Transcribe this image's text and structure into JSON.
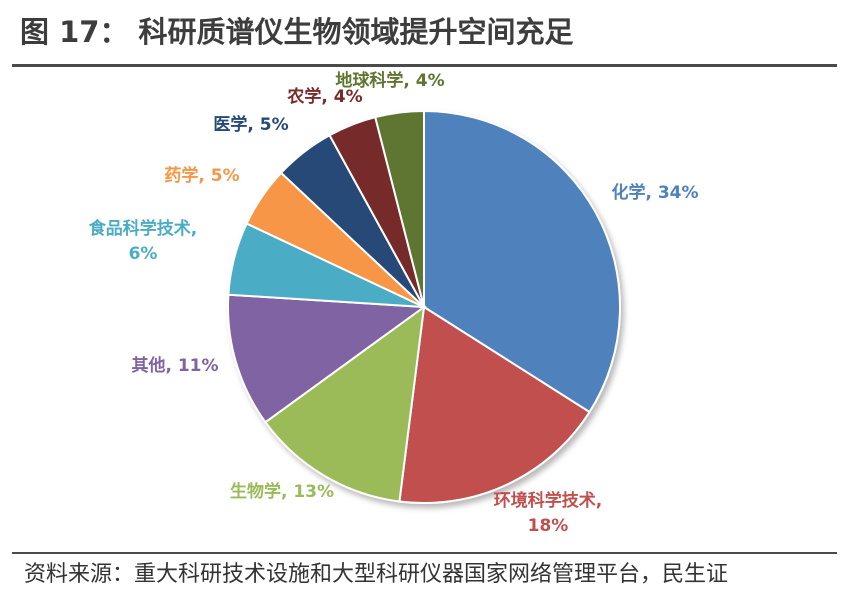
{
  "figure": {
    "title": "图 17： 科研质谱仪生物领域提升空间充足",
    "source": "资料来源：重大科研技术设施和大型科研仪器国家网络管理平台，民生证"
  },
  "chart_data": {
    "type": "pie",
    "title": "",
    "start": "12 o'clock",
    "direction": "clockwise",
    "slices": [
      {
        "label": "化学",
        "value": 34,
        "color": "#4f81bd",
        "text_lines": [
          "化学, 34%"
        ]
      },
      {
        "label": "环境科学技术",
        "value": 18,
        "color": "#c0504d",
        "text_lines": [
          "环境科学技术,",
          "18%"
        ]
      },
      {
        "label": "生物学",
        "value": 13,
        "color": "#9bbb59",
        "text_lines": [
          "生物学, 13%"
        ]
      },
      {
        "label": "其他",
        "value": 11,
        "color": "#8064a2",
        "text_lines": [
          "其他, 11%"
        ]
      },
      {
        "label": "食品科学技术",
        "value": 6,
        "color": "#4bacc6",
        "text_lines": [
          "食品科学技术,",
          "6%"
        ]
      },
      {
        "label": "药学",
        "value": 5,
        "color": "#f79646",
        "text_lines": [
          "药学, 5%"
        ]
      },
      {
        "label": "医学",
        "value": 5,
        "color": "#254a77",
        "text_lines": [
          "医学, 5%"
        ]
      },
      {
        "label": "农学",
        "value": 4,
        "color": "#772c2a",
        "text_lines": [
          "农学, 4%"
        ]
      },
      {
        "label": "地球科学",
        "value": 4,
        "color": "#5f7530",
        "text_lines": [
          "地球科学, 4%"
        ]
      }
    ]
  }
}
